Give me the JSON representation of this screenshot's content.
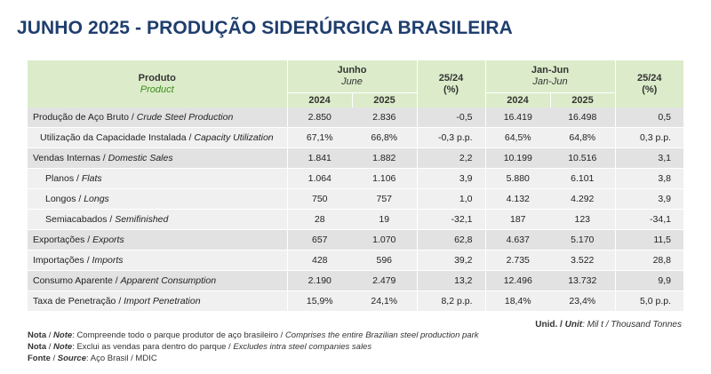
{
  "title": "JUNHO 2025 - PRODUÇÃO SIDERÚRGICA BRASILEIRA",
  "header": {
    "product": "Produto",
    "product_en": "Product",
    "month": "Junho",
    "month_en": "June",
    "var": "25/24",
    "var_unit": "(%)",
    "ytd": "Jan-Jun",
    "ytd_en": "Jan-Jun",
    "y1": "2024",
    "y2": "2025"
  },
  "rows": [
    {
      "pt": "Produção de Aço Bruto / ",
      "en": "Crude Steel Production",
      "m24": "2.850",
      "m25": "2.836",
      "mv": "-0,5",
      "y24": "16.419",
      "y25": "16.498",
      "yv": "0,5"
    },
    {
      "pt": "Utilização da Capacidade Instalada / ",
      "en": "Capacity Utilization",
      "m24": "67,1%",
      "m25": "66,8%",
      "mv": "-0,3 p.p.",
      "y24": "64,5%",
      "y25": "64,8%",
      "yv": "0,3 p.p."
    },
    {
      "pt": "Vendas Internas / ",
      "en": "Domestic Sales",
      "m24": "1.841",
      "m25": "1.882",
      "mv": "2,2",
      "y24": "10.199",
      "y25": "10.516",
      "yv": "3,1"
    },
    {
      "pt": "Planos / ",
      "en": "Flats",
      "m24": "1.064",
      "m25": "1.106",
      "mv": "3,9",
      "y24": "5.880",
      "y25": "6.101",
      "yv": "3,8"
    },
    {
      "pt": "Longos / ",
      "en": "Longs",
      "m24": "750",
      "m25": "757",
      "mv": "1,0",
      "y24": "4.132",
      "y25": "4.292",
      "yv": "3,9"
    },
    {
      "pt": "Semiacabados / ",
      "en": "Semifinished",
      "m24": "28",
      "m25": "19",
      "mv": "-32,1",
      "y24": "187",
      "y25": "123",
      "yv": "-34,1"
    },
    {
      "pt": "Exportações / ",
      "en": "Exports",
      "m24": "657",
      "m25": "1.070",
      "mv": "62,8",
      "y24": "4.637",
      "y25": "5.170",
      "yv": "11,5"
    },
    {
      "pt": "Importações / ",
      "en": "Imports",
      "m24": "428",
      "m25": "596",
      "mv": "39,2",
      "y24": "2.735",
      "y25": "3.522",
      "yv": "28,8"
    },
    {
      "pt": "Consumo Aparente / ",
      "en": "Apparent Consumption",
      "m24": "2.190",
      "m25": "2.479",
      "mv": "13,2",
      "y24": "12.496",
      "y25": "13.732",
      "yv": "9,9"
    },
    {
      "pt": "Taxa de Penetração / ",
      "en": "Import Penetration",
      "m24": "15,9%",
      "m25": "24,1%",
      "mv": "8,2 p.p.",
      "y24": "18,4%",
      "y25": "23,4%",
      "yv": "5,0 p.p."
    }
  ],
  "unit": {
    "a": "Unid. / ",
    "b": "Unit",
    "c": ": Mil t / ",
    "d": "Thousand Tonnes"
  },
  "notes": [
    {
      "k": "Nota",
      "sep": " / ",
      "k2": "Note",
      "pt": ": Compreende todo o parque produtor de aço brasileiro / ",
      "en": "Comprises the entire Brazilian steel production park"
    },
    {
      "k": "Nota",
      "sep": " / ",
      "k2": "Note",
      "pt": ": Exclui as vendas para dentro do parque / ",
      "en": "Excludes intra steel companies sales"
    },
    {
      "k": "Fonte",
      "sep": " / ",
      "k2": "Source",
      "pt": ": Aço Brasil / MDIC",
      "en": ""
    }
  ]
}
